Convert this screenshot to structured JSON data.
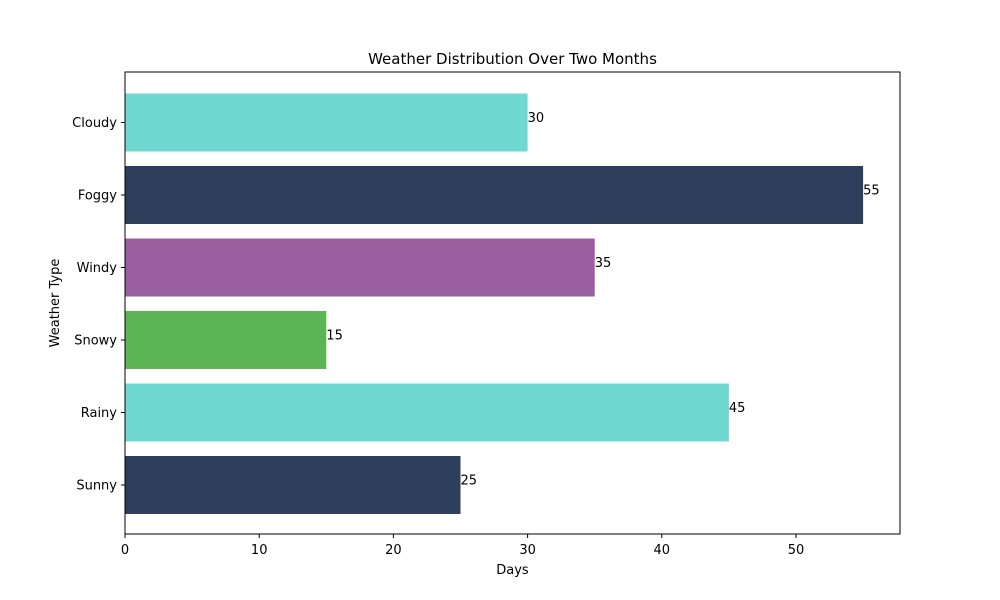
{
  "chart_data": {
    "type": "bar",
    "orientation": "horizontal",
    "title": "Weather Distribution Over Two Months",
    "xlabel": "Days",
    "ylabel": "Weather Type",
    "categories": [
      "Sunny",
      "Rainy",
      "Snowy",
      "Windy",
      "Foggy",
      "Cloudy"
    ],
    "values": [
      25,
      45,
      15,
      35,
      55,
      30
    ],
    "colors": [
      "#2e3f5c",
      "#6fd8d0",
      "#5cb454",
      "#9a5f9f",
      "#2e3f5c",
      "#6fd8d0"
    ],
    "xlim": [
      0,
      57.75
    ],
    "xticks": [
      0,
      10,
      20,
      30,
      40,
      50
    ],
    "grid": false,
    "data_labels": true
  }
}
